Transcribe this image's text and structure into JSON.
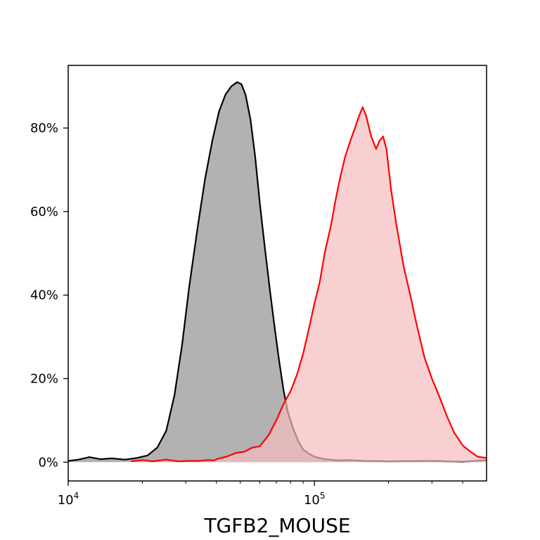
{
  "chart_data": {
    "type": "area",
    "title": "",
    "xlabel": "TGFB2_MOUSE",
    "ylabel": "",
    "x_scale": "log",
    "xlim": [
      10000,
      500000
    ],
    "ylim": [
      -4.5,
      95
    ],
    "x_ticks": [
      {
        "value": 10000,
        "base": "10",
        "exp": "4"
      },
      {
        "value": 100000,
        "base": "10",
        "exp": "5"
      }
    ],
    "y_ticks": [
      {
        "value": 0,
        "label": "0%"
      },
      {
        "value": 20,
        "label": "20%"
      },
      {
        "value": 40,
        "label": "40%"
      },
      {
        "value": 60,
        "label": "60%"
      },
      {
        "value": 80,
        "label": "80%"
      }
    ],
    "grid": false,
    "legend": false,
    "series": [
      {
        "line_color": "#000000",
        "fill_color": "#b2b2b2",
        "x": [
          10000,
          11000,
          12200,
          13500,
          15000,
          17000,
          19000,
          21000,
          23000,
          25000,
          27000,
          29000,
          31000,
          33500,
          36000,
          38500,
          41000,
          43500,
          46000,
          48500,
          50500,
          52500,
          55000,
          57500,
          60000,
          63000,
          66000,
          69000,
          72000,
          75000,
          78000,
          82000,
          86000,
          90000,
          95000,
          100000,
          110000,
          125000,
          140000,
          160000,
          200000,
          300000,
          400000,
          500000
        ],
        "y": [
          0.3,
          0.6,
          1.2,
          0.7,
          0.9,
          0.6,
          1.0,
          1.6,
          3.5,
          7.5,
          16,
          28,
          42,
          56,
          68,
          77,
          84,
          88,
          90,
          91,
          90.5,
          88,
          82,
          73,
          62,
          51,
          41,
          32,
          24,
          17,
          12,
          8,
          5,
          3,
          2,
          1.3,
          0.7,
          0.4,
          0.5,
          0.3,
          0.2,
          0.3,
          0.1,
          0.5
        ]
      },
      {
        "line_color": "#ff0000",
        "fill_color": "#f6bcbe",
        "x": [
          18000,
          20000,
          22000,
          25000,
          28000,
          31000,
          34000,
          37000,
          39000,
          41000,
          44000,
          48000,
          52000,
          56000,
          60000,
          65000,
          70000,
          75000,
          80000,
          85000,
          90000,
          95000,
          100000,
          105000,
          110000,
          117000,
          122000,
          127000,
          133000,
          140000,
          146000,
          152000,
          157000,
          162000,
          170000,
          178000,
          184000,
          190000,
          196000,
          205000,
          215000,
          230000,
          245000,
          260000,
          280000,
          300000,
          320000,
          345000,
          370000,
          400000,
          430000,
          460000,
          500000
        ],
        "y": [
          0.2,
          0.5,
          0.2,
          0.6,
          0.2,
          0.3,
          0.3,
          0.5,
          0.4,
          0.9,
          1.3,
          2.2,
          2.5,
          3.5,
          3.8,
          6.4,
          10,
          14,
          17,
          21,
          26,
          32,
          38,
          43,
          50,
          57,
          63,
          68,
          73,
          77,
          80,
          83,
          85,
          83,
          78,
          75,
          77,
          78,
          75,
          65,
          57,
          47,
          40,
          33,
          25,
          20,
          16,
          11,
          7,
          4,
          2.5,
          1.3,
          1.0
        ]
      }
    ]
  }
}
